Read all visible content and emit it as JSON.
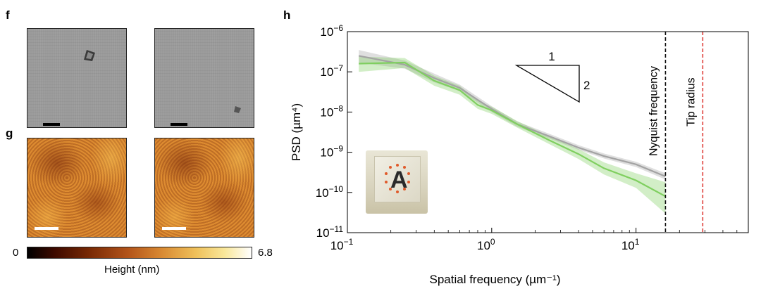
{
  "panels": {
    "f": "f",
    "g": "g",
    "h": "h"
  },
  "colorbar": {
    "min_label": "0",
    "max_label": "6.8",
    "title": "Height (nm)"
  },
  "inset": {
    "letter": "A"
  },
  "colors": {
    "grey_series": "#a3a3a3",
    "green_series": "#7fcf5f",
    "nyquist_line": "#111111",
    "tip_line": "#e0403a"
  },
  "chart_data": {
    "type": "line",
    "title": "",
    "xlabel": "Spatial frequency (µm⁻¹)",
    "ylabel": "PSD (µm⁴)",
    "xscale": "log",
    "yscale": "log",
    "xlim": [
      0.1,
      60
    ],
    "ylim": [
      1e-11,
      1e-06
    ],
    "x_ticks": [
      {
        "value": 0.1,
        "base": "10",
        "exp": "−1"
      },
      {
        "value": 1,
        "base": "10",
        "exp": "0"
      },
      {
        "value": 10,
        "base": "10",
        "exp": "1"
      }
    ],
    "y_ticks": [
      {
        "value": 1e-06,
        "base": "10",
        "exp": "−6"
      },
      {
        "value": 1e-07,
        "base": "10",
        "exp": "−7"
      },
      {
        "value": 1e-08,
        "base": "10",
        "exp": "−8"
      },
      {
        "value": 1e-09,
        "base": "10",
        "exp": "−9"
      },
      {
        "value": 1e-10,
        "base": "10",
        "exp": "−10"
      },
      {
        "value": 1e-11,
        "base": "10",
        "exp": "−11"
      }
    ],
    "series": [
      {
        "color": "#a3a3a3",
        "x": [
          0.12,
          0.25,
          0.4,
          0.6,
          0.8,
          1.0,
          1.5,
          2.5,
          4.0,
          6.0,
          10.0,
          16.0
        ],
        "y": [
          2.5e-07,
          1.5e-07,
          7e-08,
          4e-08,
          2e-08,
          1.2e-08,
          5e-09,
          2.5e-09,
          1.3e-09,
          8e-10,
          5e-10,
          2.5e-10
        ],
        "y_low": [
          1.7e-07,
          1.2e-07,
          5.5e-08,
          3.3e-08,
          1.7e-08,
          1e-08,
          4.3e-09,
          2.2e-09,
          1.15e-09,
          7e-10,
          4.3e-10,
          2.1e-10
        ],
        "y_high": [
          3.5e-07,
          1.9e-07,
          9e-08,
          4.8e-08,
          2.4e-08,
          1.4e-08,
          5.8e-09,
          2.9e-09,
          1.5e-09,
          9.3e-10,
          5.8e-10,
          3e-10
        ]
      },
      {
        "color": "#7fcf5f",
        "x": [
          0.12,
          0.25,
          0.4,
          0.6,
          0.8,
          1.0,
          1.5,
          2.5,
          4.0,
          6.0,
          10.0,
          16.0
        ],
        "y": [
          1.6e-07,
          1.7e-07,
          6e-08,
          3.5e-08,
          1.5e-08,
          1.1e-08,
          5e-09,
          2e-09,
          9e-10,
          4e-10,
          2e-10,
          8e-11
        ],
        "y_low": [
          1e-07,
          1.25e-07,
          4.5e-08,
          2.7e-08,
          1.2e-08,
          9e-09,
          4.1e-09,
          1.6e-09,
          6.8e-10,
          2.8e-10,
          1.3e-10,
          3e-11
        ],
        "y_high": [
          2.4e-07,
          2.2e-07,
          8e-08,
          4.5e-08,
          1.9e-08,
          1.35e-08,
          6e-09,
          2.5e-09,
          1.2e-09,
          5.6e-10,
          3e-10,
          1.8e-10
        ]
      }
    ],
    "vlines": [
      {
        "x": 16,
        "label": "Nyquist frequency",
        "color": "#111111",
        "style": "dashed"
      },
      {
        "x": 29,
        "label": "Tip radius",
        "color": "#e0403a",
        "style": "dashed"
      }
    ],
    "slope_triangle": {
      "run_label": "1",
      "rise_label": "2"
    }
  }
}
